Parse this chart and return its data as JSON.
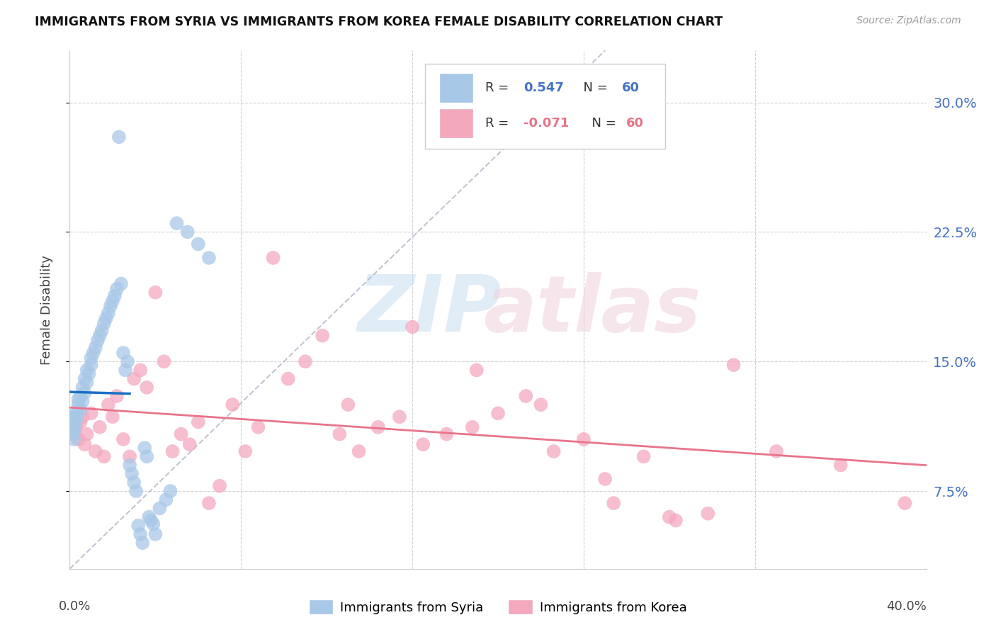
{
  "title": "IMMIGRANTS FROM SYRIA VS IMMIGRANTS FROM KOREA FEMALE DISABILITY CORRELATION CHART",
  "source": "Source: ZipAtlas.com",
  "ylabel": "Female Disability",
  "yticks_labels": [
    "7.5%",
    "15.0%",
    "22.5%",
    "30.0%"
  ],
  "ytick_vals": [
    0.075,
    0.15,
    0.225,
    0.3
  ],
  "xlim": [
    0.0,
    0.4
  ],
  "ylim": [
    0.03,
    0.33
  ],
  "r_syria": "0.547",
  "n_syria": "60",
  "r_korea": "-0.071",
  "n_korea": "60",
  "legend_bottom_label1": "Immigrants from Syria",
  "legend_bottom_label2": "Immigrants from Korea",
  "syria_color": "#a8c8e8",
  "korea_color": "#f4a8be",
  "syria_line_color": "#1a6fc4",
  "korea_line_color": "#e8748a",
  "diagonal_color": "#b0b8c8",
  "r_syria_color": "#4472c4",
  "r_korea_color": "#e8748a",
  "n_color": "#4472c4"
}
